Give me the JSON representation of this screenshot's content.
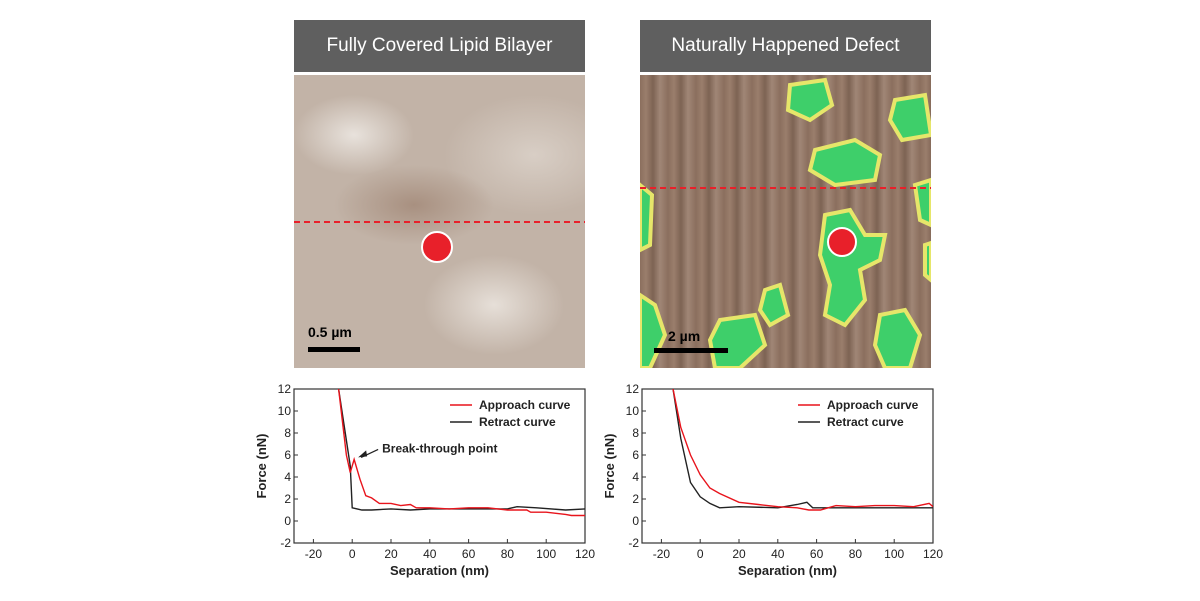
{
  "panels": [
    {
      "title": "Fully Covered Lipid Bilayer",
      "scale_label": "0.5 µm"
    },
    {
      "title": "Naturally Happened Defect",
      "scale_label": "2 µm"
    }
  ],
  "colors": {
    "approach": "#e8141c",
    "retract": "#222222",
    "header_bg": "#5f5f5f",
    "marker": "#e8202a",
    "defect_green": "#3ecf6a"
  },
  "chart_data": [
    {
      "type": "line",
      "xlabel": "Separation (nm)",
      "ylabel": "Force (nN)",
      "xlim": [
        -30,
        120
      ],
      "ylim": [
        -2,
        12
      ],
      "xticks": [
        -20,
        0,
        20,
        40,
        60,
        80,
        100,
        120
      ],
      "yticks": [
        -2,
        0,
        2,
        4,
        6,
        8,
        10,
        12
      ],
      "legend": "top-right",
      "annotation": {
        "text": "Break-through point",
        "x": 1,
        "y": 5.6
      },
      "series": [
        {
          "name": "Approach curve",
          "color": "#e8141c",
          "x": [
            -7,
            -3,
            -1,
            1,
            4,
            7,
            10,
            14,
            20,
            25,
            30,
            33,
            40,
            50,
            60,
            70,
            80,
            90,
            92,
            100,
            110,
            113,
            120
          ],
          "y": [
            12,
            6,
            4.4,
            5.6,
            3.8,
            2.3,
            2.1,
            1.6,
            1.6,
            1.4,
            1.5,
            1.2,
            1.2,
            1.1,
            1.2,
            1.2,
            1.0,
            1.0,
            0.8,
            0.8,
            0.6,
            0.5,
            0.5
          ]
        },
        {
          "name": "Retract curve",
          "color": "#222222",
          "x": [
            -7,
            -1,
            0,
            5,
            10,
            20,
            30,
            40,
            60,
            80,
            85,
            95,
            110,
            120
          ],
          "y": [
            12,
            5,
            1.2,
            1.0,
            1.0,
            1.1,
            1.0,
            1.1,
            1.1,
            1.1,
            1.3,
            1.2,
            1.0,
            1.1
          ]
        }
      ]
    },
    {
      "type": "line",
      "xlabel": "Separation (nm)",
      "ylabel": "Force (nN)",
      "xlim": [
        -30,
        120
      ],
      "ylim": [
        -2,
        12
      ],
      "xticks": [
        -20,
        0,
        20,
        40,
        60,
        80,
        100,
        120
      ],
      "yticks": [
        -2,
        0,
        2,
        4,
        6,
        8,
        10,
        12
      ],
      "legend": "top-right",
      "series": [
        {
          "name": "Approach curve",
          "color": "#e8141c",
          "x": [
            -14,
            -10,
            -5,
            0,
            5,
            10,
            20,
            30,
            40,
            50,
            56,
            62,
            70,
            80,
            90,
            100,
            110,
            118,
            120
          ],
          "y": [
            12,
            8.5,
            6,
            4.2,
            3,
            2.5,
            1.7,
            1.5,
            1.3,
            1.2,
            1.0,
            1.0,
            1.4,
            1.3,
            1.4,
            1.4,
            1.3,
            1.6,
            1.3
          ]
        },
        {
          "name": "Retract curve",
          "color": "#222222",
          "x": [
            -14,
            -10,
            -5,
            0,
            5,
            10,
            20,
            40,
            50,
            55,
            58,
            80,
            100,
            120
          ],
          "y": [
            12,
            7.5,
            3.5,
            2.2,
            1.6,
            1.2,
            1.3,
            1.2,
            1.5,
            1.7,
            1.2,
            1.2,
            1.2,
            1.2
          ]
        }
      ]
    }
  ]
}
